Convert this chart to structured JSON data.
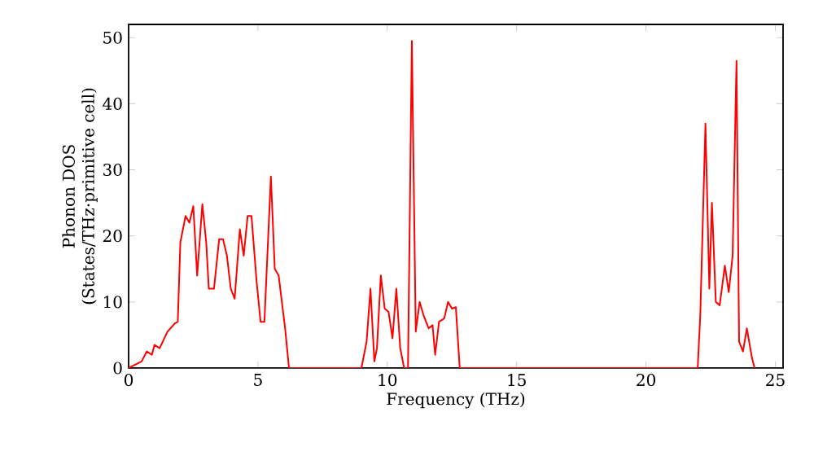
{
  "chart_data": {
    "type": "line",
    "xlabel": "Frequency (THz)",
    "ylabel": "Phonon DOS\n(States/THz·primitive cell)",
    "x": [
      0,
      0.5,
      0.7,
      0.9,
      1.0,
      1.2,
      1.5,
      1.8,
      1.9,
      2.0,
      2.2,
      2.35,
      2.5,
      2.65,
      2.85,
      3.0,
      3.1,
      3.3,
      3.5,
      3.65,
      3.8,
      3.95,
      4.1,
      4.3,
      4.45,
      4.6,
      4.75,
      4.95,
      5.1,
      5.25,
      5.5,
      5.65,
      5.8,
      6.05,
      6.2,
      9.0,
      9.2,
      9.35,
      9.5,
      9.6,
      9.75,
      9.9,
      10.05,
      10.2,
      10.35,
      10.5,
      10.65,
      10.8,
      10.95,
      11.1,
      11.25,
      11.4,
      11.6,
      11.75,
      11.85,
      12.0,
      12.2,
      12.35,
      12.5,
      12.65,
      12.8,
      22.0,
      22.1,
      22.3,
      22.45,
      22.55,
      22.7,
      22.85,
      23.05,
      23.2,
      23.35,
      23.5,
      23.6,
      23.75,
      23.9,
      24.1,
      24.2
    ],
    "series": [
      {
        "color": "#ff0000",
        "values": [
          0,
          1,
          2.5,
          2,
          3.5,
          3,
          5.5,
          6.8,
          7,
          19,
          23,
          22,
          24.5,
          14,
          24.8,
          19,
          12,
          12,
          19.5,
          19.5,
          17,
          12,
          10.5,
          21,
          17,
          23,
          23,
          13,
          7,
          7,
          29,
          15,
          14,
          6,
          0,
          0,
          4,
          12,
          1,
          3,
          14,
          9,
          8.5,
          4.5,
          12,
          3,
          0,
          0,
          49.5,
          5.5,
          10,
          8,
          6,
          6.5,
          2,
          7,
          7.5,
          10,
          9,
          9.2,
          0,
          0,
          8,
          37,
          12,
          25,
          10,
          9.5,
          15.5,
          11.5,
          17,
          46.5,
          4,
          2.5,
          6,
          1.5,
          0
        ]
      }
    ],
    "xlim": [
      0,
      25.3
    ],
    "ylim": [
      0,
      52
    ],
    "xticks": [
      0,
      5,
      10,
      15,
      20,
      25
    ],
    "yticks": [
      0,
      10,
      20,
      30,
      40,
      50
    ],
    "grid": false,
    "marker": "none",
    "line_style": "solid"
  }
}
